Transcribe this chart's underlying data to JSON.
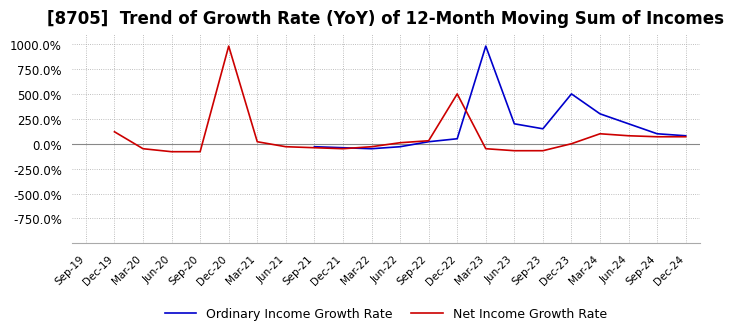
{
  "title": "[8705]  Trend of Growth Rate (YoY) of 12-Month Moving Sum of Incomes",
  "title_fontsize": 12,
  "ylim": [
    -1000,
    1100
  ],
  "yticks": [
    -750,
    -500,
    -250,
    0,
    250,
    500,
    750,
    1000
  ],
  "background_color": "#ffffff",
  "grid_color": "#aaaaaa",
  "ordinary_color": "#0000cc",
  "net_color": "#cc0000",
  "legend_labels": [
    "Ordinary Income Growth Rate",
    "Net Income Growth Rate"
  ],
  "x_labels": [
    "Sep-19",
    "Dec-19",
    "Mar-20",
    "Jun-20",
    "Sep-20",
    "Dec-20",
    "Mar-21",
    "Jun-21",
    "Sep-21",
    "Dec-21",
    "Mar-22",
    "Jun-22",
    "Sep-22",
    "Dec-22",
    "Mar-23",
    "Jun-23",
    "Sep-23",
    "Dec-23",
    "Mar-24",
    "Jun-24",
    "Sep-24",
    "Dec-24"
  ],
  "ordinary_income_growth": [
    null,
    null,
    null,
    null,
    null,
    null,
    null,
    null,
    -30,
    -40,
    -50,
    -30,
    20,
    50,
    980,
    200,
    150,
    500,
    300,
    200,
    100,
    80
  ],
  "net_income_growth": [
    null,
    120,
    -50,
    -80,
    -80,
    980,
    20,
    -30,
    -40,
    -50,
    -30,
    10,
    30,
    500,
    -50,
    -70,
    -70,
    0,
    100,
    80,
    70,
    70
  ]
}
